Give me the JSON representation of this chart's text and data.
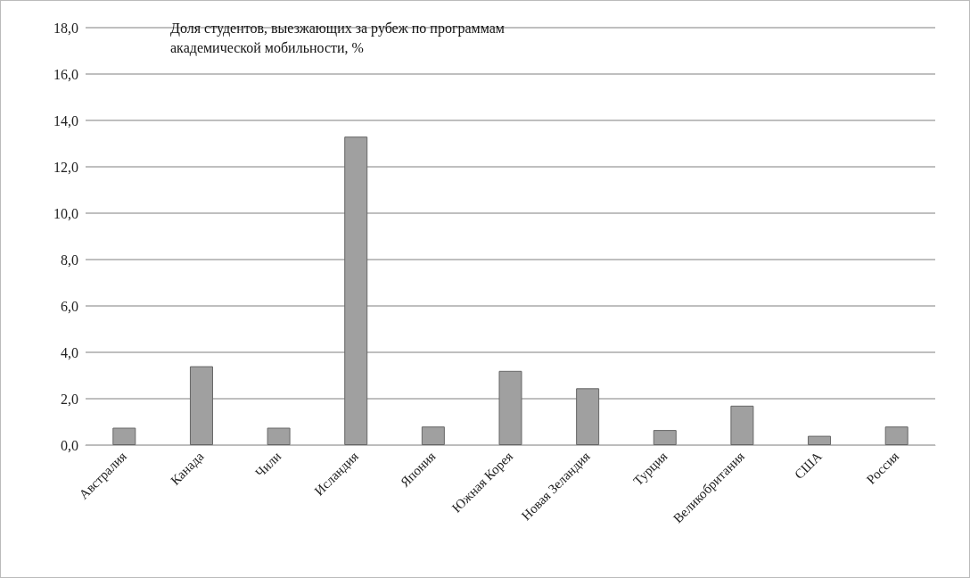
{
  "chart_data": {
    "type": "bar",
    "title": "Доля студентов, выезжающих за рубеж по программам академической мобильности, %",
    "categories": [
      "Австралия",
      "Канада",
      "Чили",
      "Исландия",
      "Япония",
      "Южная Корея",
      "Новая Зеландия",
      "Турция",
      "Великобритания",
      "США",
      "Россия"
    ],
    "values": [
      0.75,
      3.4,
      0.75,
      13.3,
      0.8,
      3.2,
      2.45,
      0.65,
      1.7,
      0.4,
      0.8
    ],
    "color": "#a0a0a0",
    "ylim": [
      0,
      18
    ],
    "yticks": [
      {
        "value": 0,
        "label": "0,0"
      },
      {
        "value": 2,
        "label": "2,0"
      },
      {
        "value": 4,
        "label": "4,0"
      },
      {
        "value": 6,
        "label": "6,0"
      },
      {
        "value": 8,
        "label": "8,0"
      },
      {
        "value": 10,
        "label": "10,0"
      },
      {
        "value": 12,
        "label": "12,0"
      },
      {
        "value": 14,
        "label": "14,0"
      },
      {
        "value": 16,
        "label": "16,0"
      },
      {
        "value": 18,
        "label": "18,0"
      }
    ],
    "grid": true
  }
}
